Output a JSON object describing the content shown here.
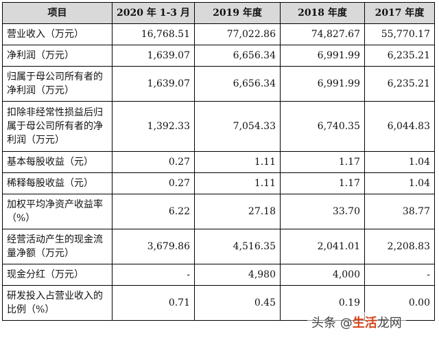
{
  "table": {
    "headers": [
      "项目",
      "2020 年 1-3 月",
      "2019 年度",
      "2018 年度",
      "2017 年度"
    ],
    "rows": [
      {
        "label": "营业收入（万元）",
        "values": [
          "16,768.51",
          "77,022.86",
          "74,827.67",
          "55,770.17"
        ]
      },
      {
        "label": "净利润（万元）",
        "values": [
          "1,639.07",
          "6,656.34",
          "6,991.99",
          "6,235.21"
        ]
      },
      {
        "label": "归属于母公司所有者的净利润（万元）",
        "values": [
          "1,639.07",
          "6,656.34",
          "6,991.99",
          "6,235.21"
        ]
      },
      {
        "label": "扣除非经常性损益后归属于母公司所有者的净利润（万元）",
        "values": [
          "1,392.33",
          "7,054.33",
          "6,740.35",
          "6,044.83"
        ]
      },
      {
        "label": "基本每股收益（元）",
        "values": [
          "0.27",
          "1.11",
          "1.17",
          "1.04"
        ]
      },
      {
        "label": "稀释每股收益（元）",
        "values": [
          "0.27",
          "1.11",
          "1.17",
          "1.04"
        ]
      },
      {
        "label": "加权平均净资产收益率（%）",
        "values": [
          "6.22",
          "27.18",
          "33.70",
          "38.77"
        ]
      },
      {
        "label": "经营活动产生的现金流量净额（万元）",
        "values": [
          "3,679.86",
          "4,516.35",
          "2,041.01",
          "2,208.83"
        ]
      },
      {
        "label": "现金分红（万元）",
        "values": [
          "-",
          "4,980",
          "4,000",
          "-"
        ]
      },
      {
        "label": "研发投入占营业收入的比例（%）",
        "values": [
          "0.71",
          "0.45",
          "0.19",
          "0.00"
        ]
      }
    ]
  },
  "watermark": {
    "prefix": "头条 @",
    "highlight": "生活",
    "suffix": "龙网"
  }
}
